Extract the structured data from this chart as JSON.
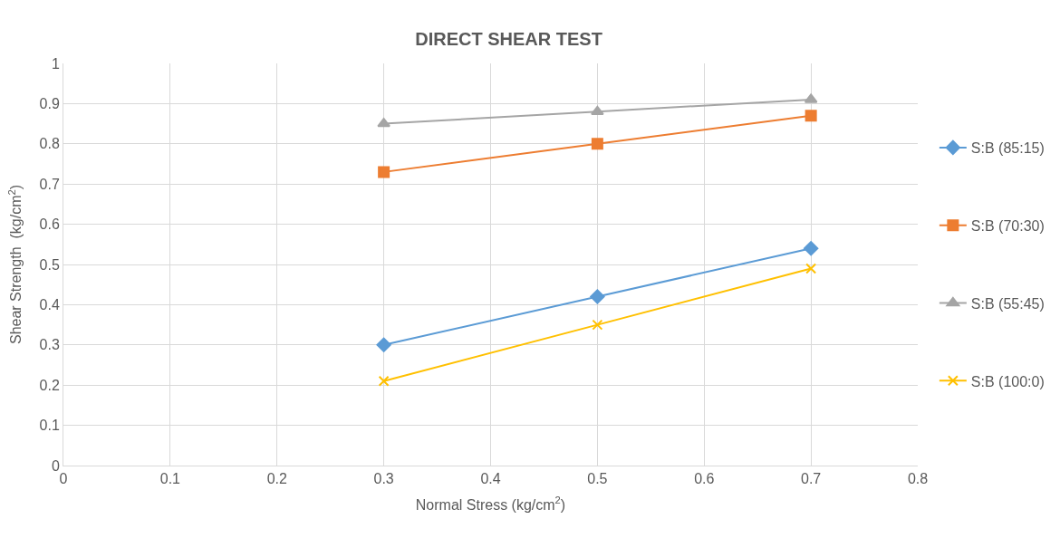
{
  "chart_data": {
    "type": "line",
    "title": "DIRECT SHEAR TEST",
    "xlabel": "Normal Stress (kg/cm$^{2}$)",
    "ylabel": "Shear Strength  (kg/cm$^{2}$)",
    "x": [
      0.3,
      0.5,
      0.7
    ],
    "series": [
      {
        "name": "S:B (85:15)",
        "color": "#5b9bd5",
        "marker": "diamond",
        "values": [
          0.3,
          0.42,
          0.54
        ]
      },
      {
        "name": "S:B (70:30)",
        "color": "#ed7d31",
        "marker": "square",
        "values": [
          0.73,
          0.8,
          0.87
        ]
      },
      {
        "name": "S:B (55:45)",
        "color": "#a5a5a5",
        "marker": "triangle",
        "values": [
          0.85,
          0.88,
          0.91
        ]
      },
      {
        "name": "S:B (100:0)",
        "color": "#ffc000",
        "marker": "cross",
        "values": [
          0.21,
          0.35,
          0.49
        ]
      }
    ],
    "xlim": [
      0,
      0.8
    ],
    "xticks": [
      0,
      0.1,
      0.2,
      0.3,
      0.4,
      0.5,
      0.6,
      0.7,
      0.8
    ],
    "ylim": [
      0,
      1
    ],
    "yticks": [
      0,
      0.1,
      0.2,
      0.3,
      0.4,
      0.5,
      0.6,
      0.7,
      0.8,
      0.9,
      1
    ],
    "grid": true,
    "legend": "right",
    "line_style": "solid"
  }
}
